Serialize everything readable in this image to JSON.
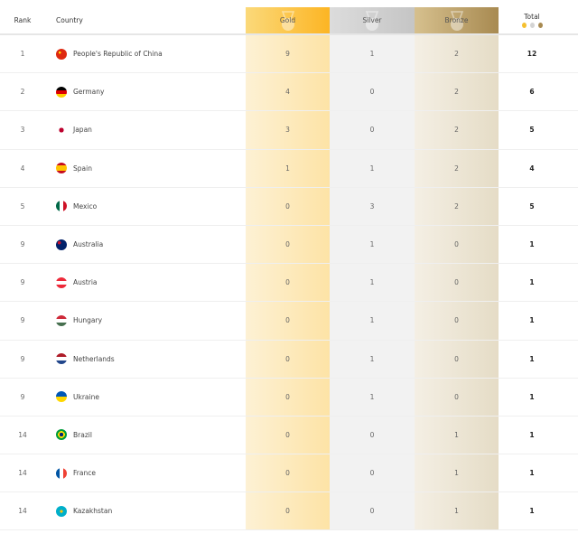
{
  "header": {
    "rank": "Rank",
    "country": "Country",
    "gold": "Gold",
    "silver": "Silver",
    "bronze": "Bronze",
    "total": "Total"
  },
  "colors": {
    "gold": "#fcb524",
    "silver": "#c5c5c5",
    "bronze": "#a88a51"
  },
  "rows": [
    {
      "rank": "1",
      "country": "People's Republic of China",
      "flag": "CHN",
      "gold": "9",
      "silver": "1",
      "bronze": "2",
      "total": "12"
    },
    {
      "rank": "2",
      "country": "Germany",
      "flag": "GER",
      "gold": "4",
      "silver": "0",
      "bronze": "2",
      "total": "6"
    },
    {
      "rank": "3",
      "country": "Japan",
      "flag": "JPN",
      "gold": "3",
      "silver": "0",
      "bronze": "2",
      "total": "5"
    },
    {
      "rank": "4",
      "country": "Spain",
      "flag": "ESP",
      "gold": "1",
      "silver": "1",
      "bronze": "2",
      "total": "4"
    },
    {
      "rank": "5",
      "country": "Mexico",
      "flag": "MEX",
      "gold": "0",
      "silver": "3",
      "bronze": "2",
      "total": "5"
    },
    {
      "rank": "9",
      "country": "Australia",
      "flag": "AUS",
      "gold": "0",
      "silver": "1",
      "bronze": "0",
      "total": "1"
    },
    {
      "rank": "9",
      "country": "Austria",
      "flag": "AUT",
      "gold": "0",
      "silver": "1",
      "bronze": "0",
      "total": "1"
    },
    {
      "rank": "9",
      "country": "Hungary",
      "flag": "HUN",
      "gold": "0",
      "silver": "1",
      "bronze": "0",
      "total": "1"
    },
    {
      "rank": "9",
      "country": "Netherlands",
      "flag": "NED",
      "gold": "0",
      "silver": "1",
      "bronze": "0",
      "total": "1"
    },
    {
      "rank": "9",
      "country": "Ukraine",
      "flag": "UKR",
      "gold": "0",
      "silver": "1",
      "bronze": "0",
      "total": "1"
    },
    {
      "rank": "14",
      "country": "Brazil",
      "flag": "BRA",
      "gold": "0",
      "silver": "0",
      "bronze": "1",
      "total": "1"
    },
    {
      "rank": "14",
      "country": "France",
      "flag": "FRA",
      "gold": "0",
      "silver": "0",
      "bronze": "1",
      "total": "1"
    },
    {
      "rank": "14",
      "country": "Kazakhstan",
      "flag": "KAZ",
      "gold": "0",
      "silver": "0",
      "bronze": "1",
      "total": "1"
    }
  ]
}
